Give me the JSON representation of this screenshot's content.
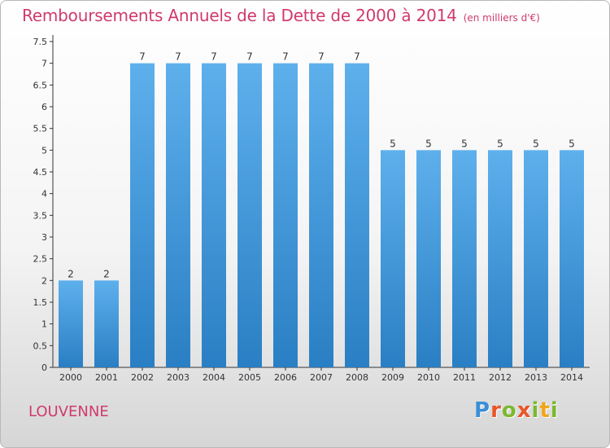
{
  "title": "Remboursements Annuels de la Dette de 2000 à 2014",
  "unit": "(en milliers d'€)",
  "commune": "LOUVENNE",
  "logo": {
    "letters": [
      "P",
      "r",
      "o",
      "x",
      "i",
      "t",
      "i"
    ],
    "colors": [
      "#3a8fd6",
      "#e8572a",
      "#7cb82f",
      "#e8572a",
      "#7cb82f",
      "#f2a51a",
      "#7cb82f"
    ]
  },
  "colors": {
    "bar_light": "#5eb0ec",
    "bar_dark": "#2a7fc4",
    "title": "#d03a6c",
    "axis": "#333333"
  },
  "chart_data": {
    "type": "bar",
    "categories": [
      "2000",
      "2001",
      "2002",
      "2003",
      "2004",
      "2005",
      "2006",
      "2007",
      "2008",
      "2009",
      "2010",
      "2011",
      "2012",
      "2013",
      "2014"
    ],
    "values": [
      2,
      2,
      7,
      7,
      7,
      7,
      7,
      7,
      7,
      5,
      5,
      5,
      5,
      5,
      5
    ],
    "yticks": [
      "0",
      "0.5",
      "1",
      "1.5",
      "2",
      "2.5",
      "3",
      "3.5",
      "4",
      "4.5",
      "5",
      "5.5",
      "6",
      "6.5",
      "7",
      "7.5"
    ],
    "ylim": [
      0,
      7.5
    ],
    "grid": false
  }
}
